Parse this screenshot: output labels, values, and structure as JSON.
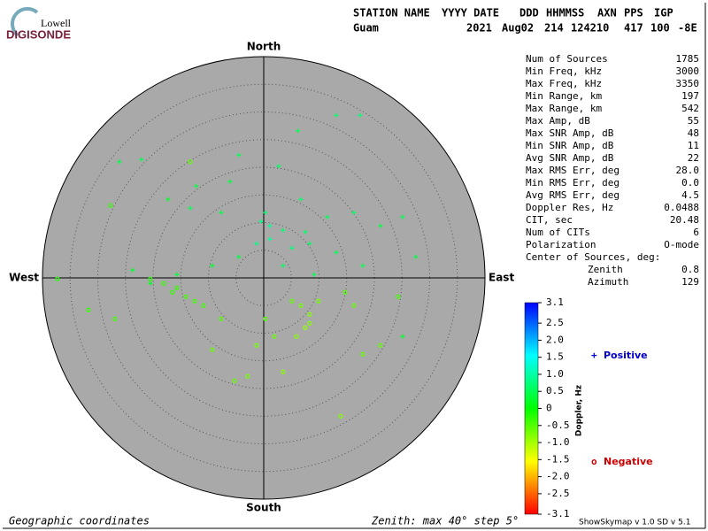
{
  "header": {
    "logo_top": "Lowell",
    "logo_main": "DIGISONDE",
    "fields": [
      "STATION NAME",
      "YYYY DATE",
      "DDD",
      "HHMMSS",
      "AXN",
      "PPS",
      "IGP"
    ],
    "values": [
      "Guam",
      "2021",
      "Aug02",
      "214",
      "124210",
      "417",
      "100",
      "-8E"
    ]
  },
  "stats": {
    "rows": [
      [
        "Num of Sources",
        "1785"
      ],
      [
        "Min Freq, kHz",
        "3000"
      ],
      [
        "Max Freq, kHz",
        "3350"
      ],
      [
        "Min Range, km",
        "197"
      ],
      [
        "Max Range, km",
        "542"
      ],
      [
        "Max Amp, dB",
        "55"
      ],
      [
        "Max SNR Amp, dB",
        "48"
      ],
      [
        "Min SNR Amp, dB",
        "11"
      ],
      [
        "Avg SNR Amp, dB",
        "22"
      ],
      [
        "Max RMS Err, deg",
        "28.0"
      ],
      [
        "Min RMS Err, deg",
        "0.0"
      ],
      [
        "Avg RMS Err, deg",
        "4.5"
      ],
      [
        "Doppler Res, Hz",
        "0.0488"
      ],
      [
        "CIT, sec",
        "20.48"
      ],
      [
        "Num of CITs",
        "6"
      ],
      [
        "Polarization",
        "O-mode"
      ]
    ],
    "center_title": "Center of Sources, deg:",
    "center_rows": [
      [
        "Zenith",
        "0.8"
      ],
      [
        "Azimuth",
        "129"
      ]
    ]
  },
  "footer": {
    "left": "Geographic coordinates",
    "middle": "Zenith: max 40°  step 5°",
    "right": "ShowSkymap v 1.0   SD v 5.1"
  },
  "chart_data": {
    "type": "skymap",
    "directions": {
      "north": "North",
      "south": "South",
      "east": "East",
      "west": "West"
    },
    "rlim": [
      0,
      40
    ],
    "rticks": [
      5,
      10,
      15,
      20,
      25,
      30,
      35
    ],
    "colorbar": {
      "label": "Doppler, Hz",
      "lim": [
        -3.1,
        3.1
      ],
      "colors": [
        "#ff0000",
        "#ffff00",
        "#00ff00",
        "#00ffff",
        "#0000ff"
      ],
      "ticks": [
        3.1,
        2.5,
        {
          "value": 2,
          "label": "2.0"
        },
        1.5,
        {
          "value": 1,
          "label": "1.0"
        },
        0.5,
        0,
        -0.5,
        {
          "value": -1,
          "label": "-1.0"
        },
        -1.5,
        {
          "value": -2,
          "label": "-2.0"
        },
        -2.5,
        -3.1
      ]
    },
    "series": [
      {
        "name": "Positive",
        "marker": "+",
        "color": "#0000cc",
        "x": [
          13.1,
          17.4,
          6.2,
          2.7,
          -4.5,
          -12.2,
          -17.3,
          -13.3,
          -7.7,
          -0.5,
          1.1,
          3.5,
          7.5,
          11.5,
          16.3,
          21.1,
          25.1,
          1.1,
          -1.3,
          5.1,
          8.3,
          13.1,
          17.9,
          -4.5,
          -9.3,
          -15.7,
          -20.5,
          -23.7,
          3.5,
          9.1,
          0.3,
          27.5,
          25.1,
          -6.1,
          6.7,
          -22.1,
          -26.1
        ],
        "y": [
          29.4,
          29.4,
          26.6,
          20.2,
          22.2,
          16.6,
          14.2,
          12.6,
          11.8,
          10.2,
          9.4,
          8.6,
          8.3,
          11.0,
          11.8,
          9.4,
          11.0,
          7.0,
          6.2,
          5.4,
          6.2,
          4.6,
          2.2,
          3.8,
          2.2,
          0.6,
          -1.0,
          1.4,
          2.2,
          0.6,
          11.8,
          3.8,
          -10.6,
          17.4,
          14.2,
          21.4,
          21.0
        ],
        "doppler": [
          0.6,
          0.7,
          0.5,
          0.6,
          0.5,
          0.4,
          0.3,
          0.5,
          0.4,
          0.8,
          0.9,
          0.7,
          0.6,
          0.5,
          0.6,
          0.4,
          0.5,
          0.9,
          0.8,
          0.7,
          0.6,
          0.5,
          0.5,
          0.4,
          0.3,
          0.3,
          0.2,
          0.3,
          0.6,
          0.5,
          0.7,
          0.4,
          0.3,
          0.4,
          0.6,
          0.5,
          0.4
        ]
      },
      {
        "name": "Negative",
        "marker": "o",
        "color": "#cc0000",
        "x": [
          -15.7,
          -18.1,
          -14.1,
          -12.5,
          -16.5,
          -20.5,
          -10.9,
          -7.7,
          -9.3,
          -2.9,
          -5.3,
          6.7,
          8.3,
          5.1,
          9.9,
          7.5,
          5.9,
          8.3,
          14.7,
          16.3,
          1.9,
          -1.3,
          21.1,
          13.9,
          -27.7,
          -31.7,
          -26.9,
          -13.3,
          17.9,
          3.5,
          0.3,
          -37.3,
          24.3
        ],
        "y": [
          -1.8,
          -1.0,
          -3.4,
          -4.2,
          -2.6,
          -0.2,
          -5.0,
          -7.4,
          -13.0,
          -17.8,
          -18.6,
          -5.0,
          -6.6,
          -4.2,
          -4.2,
          -9.0,
          -10.6,
          -8.2,
          -2.6,
          -5.0,
          -10.6,
          -12.2,
          -12.2,
          -25.0,
          13.1,
          -5.8,
          -7.4,
          21.0,
          -13.8,
          -17.0,
          -7.4,
          -0.2,
          -3.4
        ],
        "doppler": [
          -0.3,
          -0.3,
          -0.4,
          -0.4,
          -0.3,
          -0.2,
          -0.4,
          -0.5,
          -0.6,
          -0.7,
          -0.6,
          -0.7,
          -0.8,
          -0.6,
          -0.7,
          -0.9,
          -0.8,
          -0.8,
          -0.5,
          -0.6,
          -0.6,
          -0.7,
          -0.6,
          -0.8,
          -0.3,
          -0.3,
          -0.4,
          -0.6,
          -0.6,
          -0.8,
          -0.5,
          -0.2,
          -0.4
        ]
      }
    ]
  }
}
